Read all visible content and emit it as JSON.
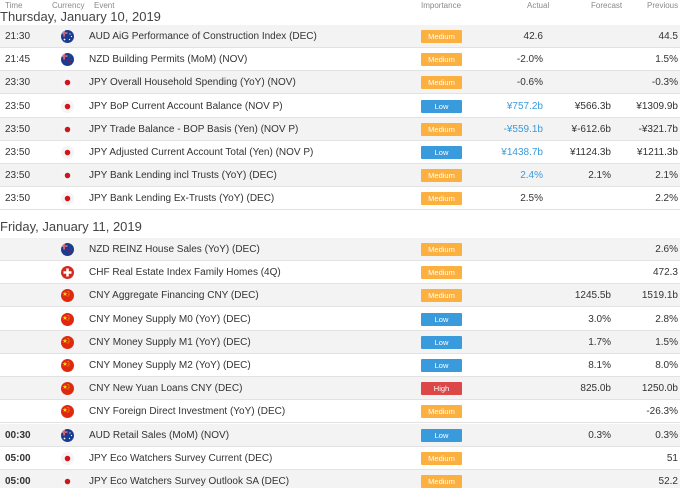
{
  "columns": {
    "time": "Time",
    "currency": "Currency",
    "event": "Event",
    "importance": "Importance",
    "actual": "Actual",
    "forecast": "Forecast",
    "previous": "Previous"
  },
  "colors": {
    "medium": "#fbb040",
    "low": "#3a9bdc",
    "high": "#dc4848",
    "actual_blue": "#3a9bdc"
  },
  "days": [
    {
      "title": "Thursday, January 10, 2019",
      "rows": [
        {
          "time": "21:30",
          "flag": "australia-flag-icon",
          "event": "AUD AiG Performance of Construction Index (DEC)",
          "importance": "Medium",
          "actual": "42.6",
          "forecast": "",
          "previous": "44.5"
        },
        {
          "time": "21:45",
          "flag": "new-zealand-flag-icon",
          "event": "NZD Building Permits (MoM) (NOV)",
          "importance": "Medium",
          "actual": "-2.0%",
          "forecast": "",
          "previous": "1.5%"
        },
        {
          "time": "23:30",
          "flag": "japan-flag-icon",
          "event": "JPY Overall Household Spending (YoY) (NOV)",
          "importance": "Medium",
          "actual": "-0.6%",
          "forecast": "",
          "previous": "-0.3%"
        },
        {
          "time": "23:50",
          "flag": "japan-flag-icon",
          "event": "JPY BoP Current Account Balance (NOV P)",
          "importance": "Low",
          "actual": "¥757.2b",
          "forecast": "¥566.3b",
          "previous": "¥1309.9b"
        },
        {
          "time": "23:50",
          "flag": "japan-flag-icon",
          "event": "JPY Trade Balance - BOP Basis (Yen) (NOV P)",
          "importance": "Medium",
          "actual": "-¥559.1b",
          "forecast": "¥-612.6b",
          "previous": "-¥321.7b"
        },
        {
          "time": "23:50",
          "flag": "japan-flag-icon",
          "event": "JPY Adjusted Current Account Total (Yen) (NOV P)",
          "importance": "Low",
          "actual": "¥1438.7b",
          "forecast": "¥1124.3b",
          "previous": "¥1211.3b"
        },
        {
          "time": "23:50",
          "flag": "japan-flag-icon",
          "event": "JPY Bank Lending incl Trusts (YoY) (DEC)",
          "importance": "Medium",
          "actual": "2.4%",
          "forecast": "2.1%",
          "previous": "2.1%"
        },
        {
          "time": "23:50",
          "flag": "japan-flag-icon",
          "event": "JPY Bank Lending Ex-Trusts (YoY) (DEC)",
          "importance": "Medium",
          "actual": "2.5%",
          "forecast": "",
          "previous": "2.2%"
        }
      ]
    },
    {
      "title": "Friday, January 11, 2019",
      "rows": [
        {
          "time": "",
          "flag": "new-zealand-flag-icon",
          "event": "NZD REINZ House Sales (YoY) (DEC)",
          "importance": "Medium",
          "actual": "",
          "forecast": "",
          "previous": "2.6%"
        },
        {
          "time": "",
          "flag": "switzerland-flag-icon",
          "event": "CHF Real Estate Index Family Homes (4Q)",
          "importance": "Medium",
          "actual": "",
          "forecast": "",
          "previous": "472.3"
        },
        {
          "time": "",
          "flag": "china-flag-icon",
          "event": "CNY Aggregate Financing CNY (DEC)",
          "importance": "Medium",
          "actual": "",
          "forecast": "1245.5b",
          "previous": "1519.1b"
        },
        {
          "time": "",
          "flag": "china-flag-icon",
          "event": "CNY Money Supply M0 (YoY) (DEC)",
          "importance": "Low",
          "actual": "",
          "forecast": "3.0%",
          "previous": "2.8%"
        },
        {
          "time": "",
          "flag": "china-flag-icon",
          "event": "CNY Money Supply M1 (YoY) (DEC)",
          "importance": "Low",
          "actual": "",
          "forecast": "1.7%",
          "previous": "1.5%"
        },
        {
          "time": "",
          "flag": "china-flag-icon",
          "event": "CNY Money Supply M2 (YoY) (DEC)",
          "importance": "Low",
          "actual": "",
          "forecast": "8.1%",
          "previous": "8.0%"
        },
        {
          "time": "",
          "flag": "china-flag-icon",
          "event": "CNY New Yuan Loans CNY (DEC)",
          "importance": "High",
          "actual": "",
          "forecast": "825.0b",
          "previous": "1250.0b"
        },
        {
          "time": "",
          "flag": "china-flag-icon",
          "event": "CNY Foreign Direct Investment (YoY) (DEC)",
          "importance": "Medium",
          "actual": "",
          "forecast": "",
          "previous": "-26.3%"
        },
        {
          "time": "00:30",
          "flag": "australia-flag-icon",
          "event": "AUD Retail Sales (MoM) (NOV)",
          "importance": "Low",
          "actual": "",
          "forecast": "0.3%",
          "previous": "0.3%"
        },
        {
          "time": "05:00",
          "flag": "japan-flag-icon",
          "event": "JPY Eco Watchers Survey Current (DEC)",
          "importance": "Medium",
          "actual": "",
          "forecast": "",
          "previous": "51"
        },
        {
          "time": "05:00",
          "flag": "japan-flag-icon",
          "event": "JPY Eco Watchers Survey Outlook SA (DEC)",
          "importance": "Medium",
          "actual": "",
          "forecast": "",
          "previous": "52.2"
        }
      ]
    }
  ]
}
